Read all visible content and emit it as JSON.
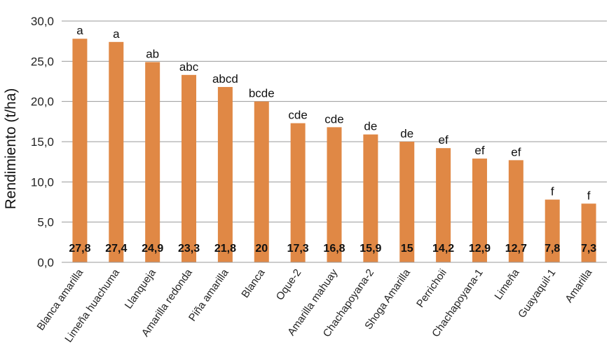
{
  "chart_data": {
    "type": "bar",
    "ylabel": "Rendimiento (t/ha)",
    "xlabel": "",
    "title": "",
    "ylim": [
      0,
      30
    ],
    "yticks": [
      "0,0",
      "5,0",
      "10,0",
      "15,0",
      "20,0",
      "25,0",
      "30,0"
    ],
    "grid": true,
    "bar_color": "#E08845",
    "categories": [
      "Blanca amarilla",
      "Limeña huachuma",
      "Llanqueja",
      "Amarilla redonda",
      "Piña amarilla",
      "Blanca",
      "Oque-2",
      "Amarilla mahuay",
      "Chachapoyana-2",
      "Shoga Amarilla",
      "Perrichoii",
      "Chachapoyana-1",
      "Limeña",
      "Guayaquil-1",
      "Amarilla"
    ],
    "values": [
      27.8,
      27.4,
      24.9,
      23.3,
      21.8,
      20,
      17.3,
      16.8,
      15.9,
      15,
      14.2,
      12.9,
      12.7,
      7.8,
      7.3
    ],
    "value_labels": [
      "27,8",
      "27,4",
      "24,9",
      "23,3",
      "21,8",
      "20",
      "17,3",
      "16,8",
      "15,9",
      "15",
      "14,2",
      "12,9",
      "12,7",
      "7,8",
      "7,3"
    ],
    "significance": [
      "a",
      "a",
      "ab",
      "abc",
      "abcd",
      "bcde",
      "cde",
      "cde",
      "de",
      "de",
      "ef",
      "ef",
      "ef",
      "f",
      "f"
    ]
  }
}
